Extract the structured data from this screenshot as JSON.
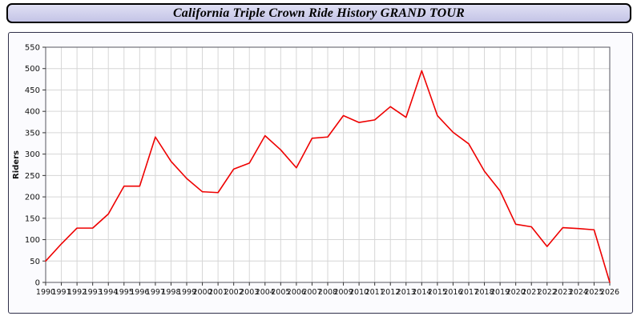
{
  "title_bar": {
    "title": "California Triple Crown Ride History GRAND TOUR"
  },
  "colors": {
    "line": "#ee0000",
    "grid": "#d6d6d6",
    "plot_bg": "#ffffff",
    "plot_border": "#55555f",
    "tick": "#333333",
    "tick_label": "#111111",
    "panel_bg": "#fbfbfe",
    "title_bg": "#ccccee"
  },
  "chart_data": {
    "type": "line",
    "title": "California Triple Crown Ride History GRAND TOUR",
    "xlabel": "",
    "ylabel": "Riders",
    "ylim": [
      0,
      550
    ],
    "ytick_step": 50,
    "grid": true,
    "legend": "none",
    "x": [
      1990,
      1991,
      1992,
      1993,
      1994,
      1995,
      1996,
      1997,
      1998,
      1999,
      2000,
      2001,
      2002,
      2003,
      2004,
      2005,
      2006,
      2007,
      2008,
      2009,
      2010,
      2011,
      2012,
      2013,
      2014,
      2015,
      2016,
      2017,
      2018,
      2019,
      2020,
      2021,
      2022,
      2023,
      2024,
      2025,
      2026
    ],
    "series": [
      {
        "name": "Riders",
        "color": "#ee0000",
        "values": [
          50,
          90,
          127,
          127,
          160,
          225,
          225,
          340,
          283,
          243,
          212,
          210,
          265,
          279,
          343,
          310,
          268,
          337,
          340,
          390,
          374,
          380,
          411,
          386,
          495,
          390,
          351,
          324,
          260,
          214,
          136,
          130,
          84,
          128,
          126,
          123,
          0
        ]
      }
    ]
  }
}
